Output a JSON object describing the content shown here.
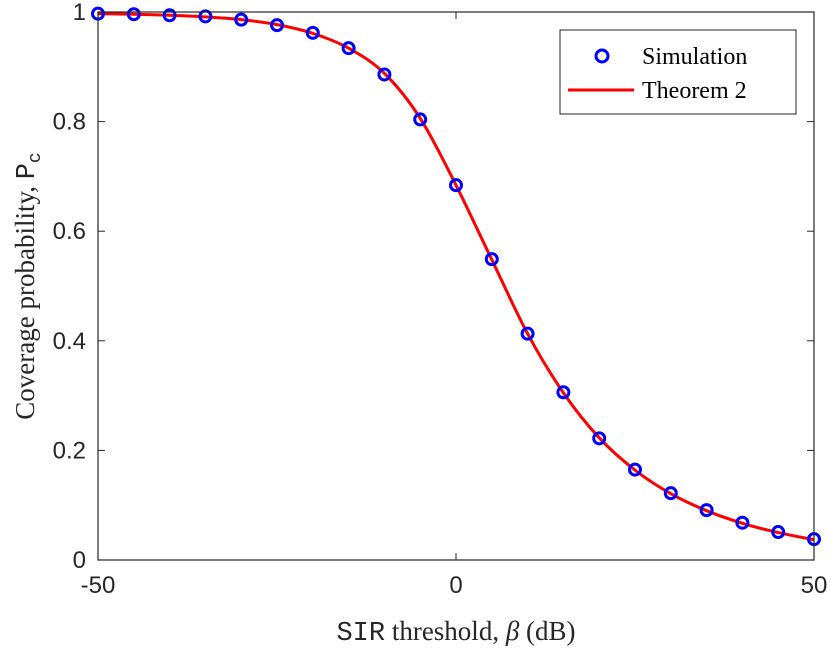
{
  "chart_data": {
    "type": "line",
    "title": "",
    "xlabel": {
      "prefix": "SIR",
      "middle": " threshold, ",
      "symbol": "β",
      "suffix": " (dB)"
    },
    "ylabel": {
      "prefix": "Coverage probability, ",
      "symbol": "P",
      "subscript": "c"
    },
    "xlim": [
      -50,
      50
    ],
    "ylim": [
      0,
      1
    ],
    "xticks": [
      -50,
      0,
      50
    ],
    "xtick_labels": [
      "-50",
      "0",
      "50"
    ],
    "yticks": [
      0,
      0.2,
      0.4,
      0.6,
      0.8,
      1
    ],
    "ytick_labels": [
      "0",
      "0.2",
      "0.4",
      "0.6",
      "0.8",
      "1"
    ],
    "grid": false,
    "legend_position": "top-right",
    "series": [
      {
        "name": "Simulation",
        "style": "markers",
        "marker": "circle",
        "color": "#0000ff",
        "x": [
          -50,
          -45,
          -40,
          -35,
          -30,
          -25,
          -20,
          -15,
          -10,
          -5,
          0,
          5,
          10,
          15,
          20,
          25,
          30,
          35,
          40,
          45,
          50
        ],
        "y": [
          0.997,
          0.996,
          0.994,
          0.992,
          0.986,
          0.976,
          0.962,
          0.934,
          0.886,
          0.804,
          0.684,
          0.549,
          0.413,
          0.306,
          0.222,
          0.165,
          0.122,
          0.091,
          0.068,
          0.051,
          0.038
        ]
      },
      {
        "name": "Theorem 2",
        "style": "line",
        "color": "#ff0000",
        "x": [
          -50,
          -45,
          -40,
          -35,
          -30,
          -25,
          -20,
          -15,
          -10,
          -5,
          0,
          5,
          10,
          15,
          20,
          25,
          30,
          35,
          40,
          45,
          50
        ],
        "y": [
          0.997,
          0.996,
          0.994,
          0.991,
          0.986,
          0.977,
          0.961,
          0.934,
          0.888,
          0.806,
          0.684,
          0.548,
          0.413,
          0.305,
          0.223,
          0.164,
          0.121,
          0.09,
          0.067,
          0.05,
          0.037
        ]
      }
    ]
  }
}
